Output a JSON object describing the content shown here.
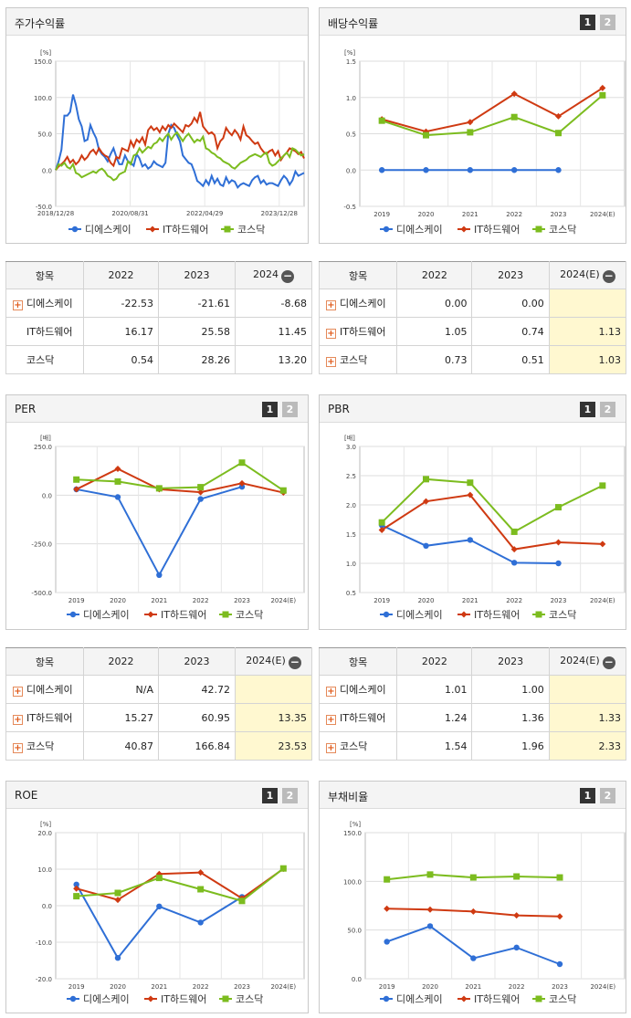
{
  "colors": {
    "dsk": "#2f6fd6",
    "ith": "#cf3a12",
    "kosdaq": "#7cbc1f"
  },
  "pager": {
    "p1": "1",
    "p2": "2"
  },
  "legend": [
    "디에스케이",
    "IT하드웨어",
    "코스닥"
  ],
  "panels": {
    "stock": {
      "title": "주가수익률",
      "chart_data": {
        "type": "line",
        "yunit": "[%]",
        "ylim": [
          -50,
          150
        ],
        "yticks": [
          "150.0",
          "100.0",
          "50.0",
          "0.0",
          "-50.0"
        ],
        "xticks": [
          "2018/12/28",
          "2020/08/31",
          "2022/04/29",
          "2023/12/28"
        ],
        "series": [
          {
            "name": "디에스케이",
            "values": [
              0,
              12,
              28,
              75,
              75,
              80,
              104,
              90,
              70,
              60,
              40,
              42,
              62,
              52,
              44,
              28,
              22,
              18,
              12,
              22,
              30,
              18,
              8,
              8,
              20,
              12,
              10,
              6,
              22,
              16,
              5,
              8,
              2,
              5,
              12,
              8,
              6,
              4,
              10,
              50,
              62,
              58,
              48,
              40,
              20,
              15,
              10,
              8,
              -2,
              -15,
              -18,
              -22,
              -14,
              -20,
              -8,
              -18,
              -12,
              -20,
              -22,
              -10,
              -18,
              -14,
              -16,
              -24,
              -20,
              -18,
              -20,
              -22,
              -14,
              -10,
              -8,
              -18,
              -14,
              -20,
              -18,
              -18,
              -20,
              -22,
              -14,
              -8,
              -12,
              -20,
              -14,
              -2,
              -8,
              -6,
              -4
            ]
          },
          {
            "name": "IT하드웨어",
            "values": [
              0,
              5,
              8,
              12,
              18,
              10,
              14,
              8,
              12,
              20,
              14,
              18,
              25,
              28,
              22,
              30,
              24,
              20,
              18,
              10,
              6,
              18,
              16,
              30,
              28,
              26,
              40,
              32,
              42,
              38,
              45,
              35,
              55,
              60,
              55,
              58,
              52,
              60,
              55,
              62,
              58,
              64,
              60,
              56,
              52,
              62,
              60,
              64,
              72,
              66,
              80,
              60,
              55,
              50,
              52,
              48,
              30,
              40,
              44,
              58,
              52,
              48,
              55,
              50,
              42,
              60,
              48,
              45,
              40,
              36,
              38,
              30,
              25,
              22,
              26,
              28,
              20,
              26,
              14,
              20,
              24,
              30,
              28,
              26,
              22,
              25,
              16
            ]
          },
          {
            "name": "코스닥",
            "values": [
              0,
              8,
              6,
              10,
              4,
              2,
              8,
              -4,
              -6,
              -10,
              -8,
              -6,
              -4,
              -2,
              -4,
              0,
              2,
              -2,
              -8,
              -10,
              -14,
              -12,
              -6,
              -4,
              -2,
              12,
              8,
              20,
              22,
              30,
              24,
              28,
              32,
              30,
              36,
              38,
              44,
              40,
              46,
              50,
              42,
              48,
              52,
              46,
              40,
              46,
              50,
              44,
              38,
              42,
              40,
              46,
              30,
              28,
              24,
              22,
              18,
              16,
              12,
              10,
              8,
              4,
              2,
              6,
              10,
              12,
              14,
              18,
              20,
              22,
              20,
              18,
              22,
              24,
              10,
              6,
              8,
              12,
              16,
              20,
              24,
              18,
              30,
              28,
              24,
              20,
              22
            ]
          }
        ]
      }
    },
    "dividend": {
      "title": "배당수익률",
      "chart_data": {
        "type": "line",
        "yunit": "[%]",
        "ylim": [
          -0.5,
          1.5
        ],
        "yticks": [
          "1.5",
          "1.0",
          "0.5",
          "0.0",
          "-0.5"
        ],
        "categories": [
          "2019",
          "2020",
          "2021",
          "2022",
          "2023",
          "2024(E)"
        ],
        "series": [
          {
            "name": "디에스케이",
            "values": [
              0,
              0,
              0,
              0,
              0,
              null
            ]
          },
          {
            "name": "IT하드웨어",
            "values": [
              0.7,
              0.53,
              0.66,
              1.05,
              0.74,
              1.13
            ]
          },
          {
            "name": "코스닥",
            "values": [
              0.68,
              0.48,
              0.52,
              0.73,
              0.51,
              1.03
            ]
          }
        ]
      }
    },
    "per": {
      "title": "PER",
      "chart_data": {
        "type": "line",
        "yunit": "[배]",
        "ylim": [
          -500,
          250
        ],
        "yticks": [
          "250.0",
          "0.0",
          "-250.0",
          "-500.0"
        ],
        "categories": [
          "2019",
          "2020",
          "2021",
          "2022",
          "2023",
          "2024(E)"
        ],
        "series": [
          {
            "name": "디에스케이",
            "values": [
              30,
              -10,
              -410,
              -20,
              43,
              null
            ]
          },
          {
            "name": "IT하드웨어",
            "values": [
              30,
              135,
              30,
              15,
              61,
              13
            ]
          },
          {
            "name": "코스닥",
            "values": [
              80,
              70,
              35,
              41,
              167,
              24
            ]
          }
        ]
      }
    },
    "pbr": {
      "title": "PBR",
      "chart_data": {
        "type": "line",
        "yunit": "[배]",
        "ylim": [
          0.5,
          3.0
        ],
        "yticks": [
          "3.0",
          "2.5",
          "2.0",
          "1.5",
          "1.0",
          "0.5"
        ],
        "categories": [
          "2019",
          "2020",
          "2021",
          "2022",
          "2023",
          "2024(E)"
        ],
        "series": [
          {
            "name": "디에스케이",
            "values": [
              1.65,
              1.3,
              1.4,
              1.01,
              1.0,
              null
            ]
          },
          {
            "name": "IT하드웨어",
            "values": [
              1.57,
              2.06,
              2.17,
              1.24,
              1.36,
              1.33
            ]
          },
          {
            "name": "코스닥",
            "values": [
              1.7,
              2.44,
              2.38,
              1.54,
              1.96,
              2.33
            ]
          }
        ]
      }
    },
    "roe": {
      "title": "ROE",
      "chart_data": {
        "type": "line",
        "yunit": "[%]",
        "ylim": [
          -20,
          20
        ],
        "yticks": [
          "20.0",
          "10.0",
          "0.0",
          "-10.0",
          "-20.0"
        ],
        "categories": [
          "2019",
          "2020",
          "2021",
          "2022",
          "2023",
          "2024(E)"
        ],
        "series": [
          {
            "name": "디에스케이",
            "values": [
              5.8,
              -14.3,
              -0.2,
              -4.6,
              2.4,
              null
            ]
          },
          {
            "name": "IT하드웨어",
            "values": [
              4.7,
              1.6,
              8.7,
              9.1,
              2.0,
              10.1
            ]
          },
          {
            "name": "코스닥",
            "values": [
              2.6,
              3.5,
              7.6,
              4.5,
              1.3,
              10.2
            ]
          }
        ]
      }
    },
    "debt": {
      "title": "부채비율",
      "chart_data": {
        "type": "line",
        "yunit": "[%]",
        "ylim": [
          0,
          150
        ],
        "yticks": [
          "150.0",
          "100.0",
          "50.0",
          "0.0"
        ],
        "categories": [
          "2019",
          "2020",
          "2021",
          "2022",
          "2023",
          "2024(E)"
        ],
        "series": [
          {
            "name": "디에스케이",
            "values": [
              38,
              54,
              21,
              32,
              15,
              null
            ]
          },
          {
            "name": "IT하드웨어",
            "values": [
              72,
              71,
              69,
              65,
              64,
              null
            ]
          },
          {
            "name": "코스닥",
            "values": [
              102,
              107,
              104,
              105,
              104,
              null
            ]
          }
        ]
      }
    }
  },
  "tables": {
    "stock": {
      "headers": [
        "항목",
        "2022",
        "2023",
        "2024"
      ],
      "rows": [
        {
          "label": "디에스케이",
          "plus": true,
          "values": [
            "-22.53",
            "-21.61",
            "-8.68"
          ]
        },
        {
          "label": "IT하드웨어",
          "plus": false,
          "values": [
            "16.17",
            "25.58",
            "11.45"
          ]
        },
        {
          "label": "코스닥",
          "plus": false,
          "values": [
            "0.54",
            "28.26",
            "13.20"
          ]
        }
      ]
    },
    "dividend": {
      "headers": [
        "항목",
        "2022",
        "2023",
        "2024(E)"
      ],
      "rows": [
        {
          "label": "디에스케이",
          "plus": true,
          "values": [
            "0.00",
            "0.00",
            ""
          ]
        },
        {
          "label": "IT하드웨어",
          "plus": true,
          "values": [
            "1.05",
            "0.74",
            "1.13"
          ]
        },
        {
          "label": "코스닥",
          "plus": true,
          "values": [
            "0.73",
            "0.51",
            "1.03"
          ]
        }
      ]
    },
    "per": {
      "headers": [
        "항목",
        "2022",
        "2023",
        "2024(E)"
      ],
      "rows": [
        {
          "label": "디에스케이",
          "plus": true,
          "values": [
            "N/A",
            "42.72",
            ""
          ]
        },
        {
          "label": "IT하드웨어",
          "plus": true,
          "values": [
            "15.27",
            "60.95",
            "13.35"
          ]
        },
        {
          "label": "코스닥",
          "plus": true,
          "values": [
            "40.87",
            "166.84",
            "23.53"
          ]
        }
      ]
    },
    "pbr": {
      "headers": [
        "항목",
        "2022",
        "2023",
        "2024(E)"
      ],
      "rows": [
        {
          "label": "디에스케이",
          "plus": true,
          "values": [
            "1.01",
            "1.00",
            ""
          ]
        },
        {
          "label": "IT하드웨어",
          "plus": true,
          "values": [
            "1.24",
            "1.36",
            "1.33"
          ]
        },
        {
          "label": "코스닥",
          "plus": true,
          "values": [
            "1.54",
            "1.96",
            "2.33"
          ]
        }
      ]
    }
  }
}
